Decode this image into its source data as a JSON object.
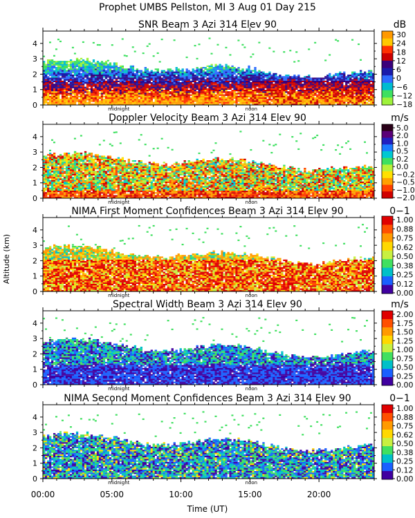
{
  "figure": {
    "title": "Prophet  UMBS Pellston, MI   3 Aug 01 Day 215",
    "ylabel": "Altitude (km)",
    "xlabel": "Time (UT)",
    "x_ticks": [
      "00:00",
      "05:00",
      "10:00",
      "15:00",
      "20:00"
    ],
    "day_markers": [
      "midnight",
      "noon"
    ]
  },
  "chart_data": [
    {
      "type": "heatmap",
      "title": "SNR Beam 3 Azi 314 Elev 90",
      "unit": "dB",
      "x_range_hours": [
        0,
        24
      ],
      "y_ticks": [
        "0",
        "1",
        "2",
        "3",
        "4"
      ],
      "ylim": [
        0,
        4.8
      ],
      "colorbar": {
        "labels": [
          "30",
          "24",
          "18",
          "12",
          "6",
          "0",
          "−6",
          "−12",
          "−18"
        ],
        "colors": [
          "#ff9900",
          "#ffc800",
          "#ff3000",
          "#cc0000",
          "#3a007a",
          "#1a1aaa",
          "#2e6bff",
          "#00bcd0",
          "#3ee060",
          "#9ef23a"
        ]
      }
    },
    {
      "type": "heatmap",
      "title": "Doppler Velocity Beam 3 Azi 314 Elev 90",
      "unit": "m/s",
      "x_range_hours": [
        0,
        24
      ],
      "y_ticks": [
        "0",
        "1",
        "2",
        "3",
        "4"
      ],
      "ylim": [
        0,
        4.8
      ],
      "colorbar": {
        "labels": [
          "5.0",
          "2.0",
          "1.0",
          "0.5",
          "0.2",
          "0.0",
          "−0.2",
          "−0.5",
          "−1.0",
          "−2.0"
        ],
        "colors": [
          "#2a0018",
          "#5a0078",
          "#2020c0",
          "#1a7cff",
          "#00c8d2",
          "#3ee060",
          "#b8f03a",
          "#ffe000",
          "#ffa000",
          "#ff4000",
          "#d00000"
        ]
      }
    },
    {
      "type": "heatmap",
      "title": "NIMA First Moment Confidences Beam 3 Azi 314 Elev 90",
      "unit": "0−1",
      "x_range_hours": [
        0,
        24
      ],
      "y_ticks": [
        "0",
        "1",
        "2",
        "3",
        "4"
      ],
      "ylim": [
        0,
        4.8
      ],
      "colorbar": {
        "labels": [
          "1.00",
          "0.88",
          "0.75",
          "0.62",
          "0.50",
          "0.38",
          "0.25",
          "0.12",
          "0.00"
        ],
        "colors": [
          "#e00000",
          "#ff5000",
          "#ff9a00",
          "#ffd800",
          "#c8f040",
          "#40e060",
          "#00c0c8",
          "#1a60ff",
          "#4000a0"
        ]
      }
    },
    {
      "type": "heatmap",
      "title": "Spectral Width Beam 3 Azi 314 Elev 90",
      "unit": "m/s",
      "x_range_hours": [
        0,
        24
      ],
      "y_ticks": [
        "0",
        "1",
        "2",
        "3",
        "4"
      ],
      "ylim": [
        0,
        4.8
      ],
      "colorbar": {
        "labels": [
          "2.00",
          "1.75",
          "1.50",
          "1.25",
          "1.00",
          "0.75",
          "0.50",
          "0.25",
          "0.00"
        ],
        "colors": [
          "#e00000",
          "#ff5000",
          "#ff9a00",
          "#ffd800",
          "#c8f040",
          "#40e060",
          "#00c0c8",
          "#1a60ff",
          "#4000a0"
        ]
      }
    },
    {
      "type": "heatmap",
      "title": "NIMA Second Moment Confidences Beam 3 Azi 314 Elev 90",
      "unit": "0−1",
      "x_range_hours": [
        0,
        24
      ],
      "y_ticks": [
        "0",
        "1",
        "2",
        "3",
        "4"
      ],
      "ylim": [
        0,
        4.8
      ],
      "colorbar": {
        "labels": [
          "1.00",
          "0.88",
          "0.75",
          "0.62",
          "0.50",
          "0.38",
          "0.25",
          "0.12",
          "0.00"
        ],
        "colors": [
          "#e00000",
          "#ff5000",
          "#ff9a00",
          "#ffd800",
          "#c8f040",
          "#40e060",
          "#00c0c8",
          "#1a60ff",
          "#4000a0"
        ]
      }
    }
  ]
}
